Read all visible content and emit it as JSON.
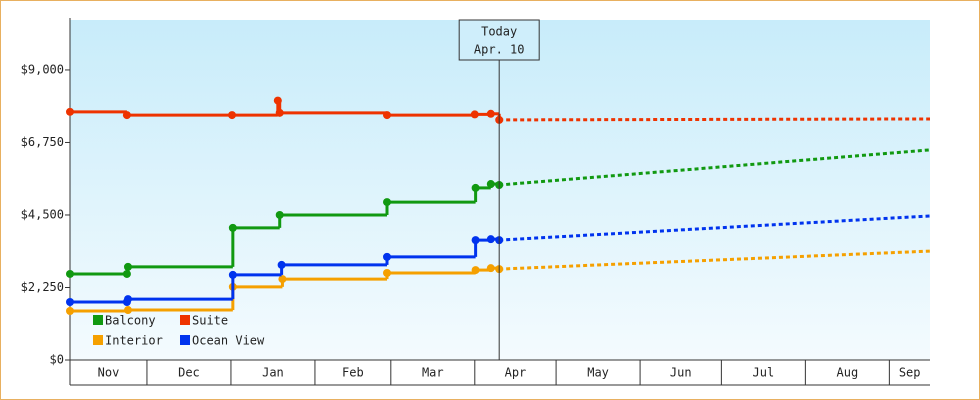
{
  "chart_data": {
    "type": "line",
    "step": true,
    "xlim": [
      1.6,
      319
    ],
    "ylim": [
      0,
      10550
    ],
    "yticks": [
      {
        "value": 0,
        "label": "$0"
      },
      {
        "value": 2250,
        "label": "$2,250"
      },
      {
        "value": 4500,
        "label": "$4,500"
      },
      {
        "value": 6750,
        "label": "$6,750"
      },
      {
        "value": 9000,
        "label": "$9,000"
      }
    ],
    "months": [
      {
        "label": "Nov",
        "start": 0
      },
      {
        "label": "Dec",
        "start": 30
      },
      {
        "label": "Jan",
        "start": 61
      },
      {
        "label": "Feb",
        "start": 92
      },
      {
        "label": "Mar",
        "start": 120
      },
      {
        "label": "Apr",
        "start": 151
      },
      {
        "label": "May",
        "start": 181
      },
      {
        "label": "Jun",
        "start": 212
      },
      {
        "label": "Jul",
        "start": 242
      },
      {
        "label": "Aug",
        "start": 273
      },
      {
        "label": "Sep",
        "start": 304
      }
    ],
    "today": {
      "x": 160,
      "title": "Today",
      "label": "Apr. 10"
    },
    "series": [
      {
        "name": "Balcony",
        "color": "#119911",
        "x": [
          1.6,
          22.6,
          23,
          61.7,
          79,
          118.6,
          151.3,
          156.9,
          160,
          319
        ],
        "values": [
          2670,
          2670,
          2890,
          4100,
          4500,
          4900,
          5340,
          5460,
          5430,
          6520
        ]
      },
      {
        "name": "Suite",
        "color": "#ee3300",
        "x": [
          1.6,
          22.6,
          61.4,
          78.3,
          79,
          118.6,
          151,
          156.9,
          160,
          319
        ],
        "values": [
          7700,
          7600,
          7600,
          8050,
          7670,
          7600,
          7620,
          7640,
          7450,
          7480
        ]
      },
      {
        "name": "Interior",
        "color": "#f5a000",
        "x": [
          1.6,
          23,
          61.7,
          80,
          118.6,
          151.3,
          156.9,
          160,
          319
        ],
        "values": [
          1520,
          1550,
          2270,
          2510,
          2700,
          2790,
          2850,
          2820,
          3380
        ]
      },
      {
        "name": "Ocean View",
        "color": "#0033ee",
        "x": [
          1.6,
          22.6,
          23,
          61.7,
          79.7,
          118.6,
          151.3,
          156.9,
          160,
          319
        ],
        "values": [
          1800,
          1800,
          1890,
          2640,
          2950,
          3200,
          3720,
          3750,
          3720,
          4470
        ]
      }
    ]
  }
}
